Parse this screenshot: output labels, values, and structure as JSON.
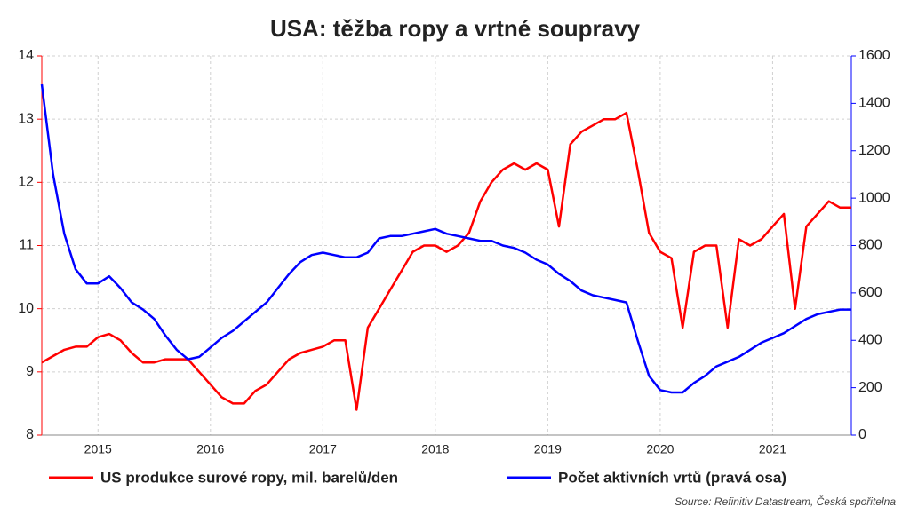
{
  "chart_data": {
    "type": "line",
    "title": "USA: těžba ropy a vrtné soupravy",
    "source": "Source: Refinitiv Datastream, Česká spořitelna",
    "x": [
      2015.0,
      2015.1,
      2015.2,
      2015.3,
      2015.4,
      2015.5,
      2015.6,
      2015.7,
      2015.8,
      2015.9,
      2016.0,
      2016.1,
      2016.2,
      2016.3,
      2016.4,
      2016.5,
      2016.6,
      2016.7,
      2016.8,
      2016.9,
      2017.0,
      2017.1,
      2017.2,
      2017.3,
      2017.4,
      2017.5,
      2017.6,
      2017.7,
      2017.8,
      2017.9,
      2018.0,
      2018.1,
      2018.2,
      2018.3,
      2018.4,
      2018.5,
      2018.6,
      2018.7,
      2018.8,
      2018.9,
      2019.0,
      2019.1,
      2019.2,
      2019.3,
      2019.4,
      2019.5,
      2019.6,
      2019.7,
      2019.8,
      2019.9,
      2020.0,
      2020.1,
      2020.2,
      2020.3,
      2020.4,
      2020.5,
      2020.6,
      2020.7,
      2020.8,
      2020.9,
      2021.0,
      2021.1,
      2021.2,
      2021.3,
      2021.4,
      2021.5,
      2021.6,
      2021.7,
      2021.8,
      2021.9,
      2022.0,
      2022.1,
      2022.2
    ],
    "xlim": [
      2015.0,
      2022.2
    ],
    "xticks": [
      {
        "value": 2015.5,
        "label": "2015"
      },
      {
        "value": 2016.5,
        "label": "2016"
      },
      {
        "value": 2017.5,
        "label": "2017"
      },
      {
        "value": 2018.5,
        "label": "2018"
      },
      {
        "value": 2019.5,
        "label": "2019"
      },
      {
        "value": 2020.5,
        "label": "2020"
      },
      {
        "value": 2021.5,
        "label": "2021"
      }
    ],
    "ylim": [
      8,
      14
    ],
    "yticks": [
      8,
      9,
      10,
      11,
      12,
      13,
      14
    ],
    "y2lim": [
      0,
      1600
    ],
    "y2ticks": [
      0,
      200,
      400,
      600,
      800,
      1000,
      1200,
      1400,
      1600
    ],
    "grid": true,
    "series": [
      {
        "name": "US produkce surové ropy, mil. barelů/den",
        "color": "#ff0000",
        "values": [
          9.15,
          9.25,
          9.35,
          9.4,
          9.4,
          9.55,
          9.6,
          9.5,
          9.3,
          9.15,
          9.15,
          9.2,
          9.2,
          9.2,
          9.0,
          8.8,
          8.6,
          8.5,
          8.5,
          8.7,
          8.8,
          9.0,
          9.2,
          9.3,
          9.35,
          9.4,
          9.5,
          9.5,
          8.4,
          9.7,
          10.0,
          10.3,
          10.6,
          10.9,
          11.0,
          11.0,
          10.9,
          11.0,
          11.2,
          11.7,
          12.0,
          12.2,
          12.3,
          12.2,
          12.3,
          12.2,
          11.3,
          12.6,
          12.8,
          12.9,
          13.0,
          13.0,
          13.1,
          12.2,
          11.2,
          10.9,
          10.8,
          9.7,
          10.9,
          11.0,
          11.0,
          9.7,
          11.1,
          11.0,
          11.1,
          11.3,
          11.5,
          10.0,
          11.3,
          11.5,
          11.7,
          11.6,
          11.6
        ]
      },
      {
        "name": "Počet aktivních vrtů (pravá osa)",
        "color": "#0000ff",
        "axis": "y2",
        "values": [
          1480,
          1100,
          850,
          700,
          640,
          640,
          670,
          620,
          560,
          530,
          490,
          420,
          360,
          320,
          330,
          370,
          410,
          440,
          480,
          520,
          560,
          620,
          680,
          730,
          760,
          770,
          760,
          750,
          750,
          770,
          830,
          840,
          840,
          850,
          860,
          870,
          850,
          840,
          830,
          820,
          820,
          800,
          790,
          770,
          740,
          720,
          680,
          650,
          610,
          590,
          580,
          570,
          560,
          400,
          250,
          190,
          180,
          180,
          220,
          250,
          290,
          310,
          330,
          360,
          390,
          410,
          430,
          460,
          490,
          510,
          520,
          530,
          530
        ]
      }
    ]
  }
}
